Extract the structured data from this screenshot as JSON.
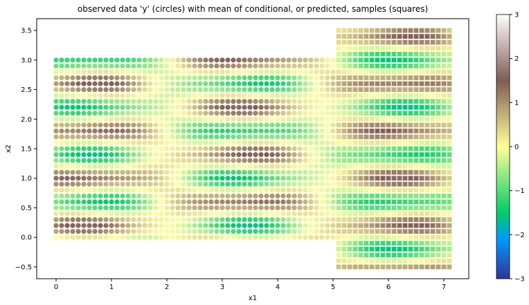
{
  "chart_data": {
    "type": "scatter",
    "title": "observed data 'y' (circles) with mean of conditional, or predicted, samples (squares)",
    "xlabel": "x1",
    "ylabel": "x2",
    "xlim": [
      -0.35,
      7.45
    ],
    "ylim": [
      -0.7,
      3.7
    ],
    "x_ticks": [
      0,
      1,
      2,
      3,
      4,
      5,
      6,
      7
    ],
    "y_ticks": [
      -0.5,
      0.0,
      0.5,
      1.0,
      1.5,
      2.0,
      2.5,
      3.0,
      3.5
    ],
    "grid": false,
    "colormap": "terrain",
    "color_range": [
      -3,
      3
    ],
    "colorbar_ticks": [
      -3,
      -2,
      -1,
      0,
      1,
      2,
      3
    ],
    "series": [
      {
        "marker": "circle",
        "x_range": [
          0,
          5
        ],
        "y_range": [
          0,
          3
        ],
        "step": 0.1
      },
      {
        "marker": "square",
        "x_range": [
          5.1,
          7.1
        ],
        "y_range": [
          -0.5,
          3.5
        ],
        "step": 0.1
      }
    ]
  }
}
